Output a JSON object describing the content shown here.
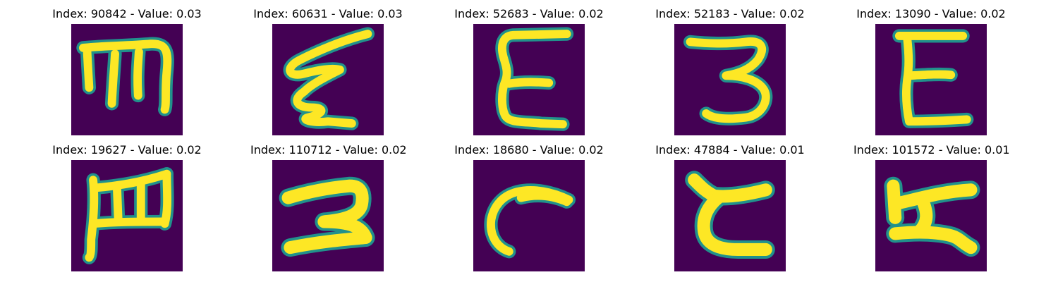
{
  "colors": {
    "background": "#440154",
    "stroke_edge": "#21918c",
    "stroke_core": "#fde725"
  },
  "panels": [
    {
      "index": "90842",
      "value": "0.03",
      "title": "Index: 90842 - Value: 0.03"
    },
    {
      "index": "60631",
      "value": "0.03",
      "title": "Index: 60631 - Value: 0.03"
    },
    {
      "index": "52683",
      "value": "0.02",
      "title": "Index: 52683 - Value: 0.02"
    },
    {
      "index": "52183",
      "value": "0.02",
      "title": "Index: 52183 - Value: 0.02"
    },
    {
      "index": "13090",
      "value": "0.02",
      "title": "Index: 13090 - Value: 0.02"
    },
    {
      "index": "19627",
      "value": "0.02",
      "title": "Index: 19627 - Value: 0.02"
    },
    {
      "index": "110712",
      "value": "0.02",
      "title": "Index: 110712 - Value: 0.02"
    },
    {
      "index": "18680",
      "value": "0.02",
      "title": "Index: 18680 - Value: 0.02"
    },
    {
      "index": "47884",
      "value": "0.01",
      "title": "Index: 47884 - Value: 0.01"
    },
    {
      "index": "101572",
      "value": "0.01",
      "title": "Index: 101572 - Value: 0.01"
    }
  ]
}
